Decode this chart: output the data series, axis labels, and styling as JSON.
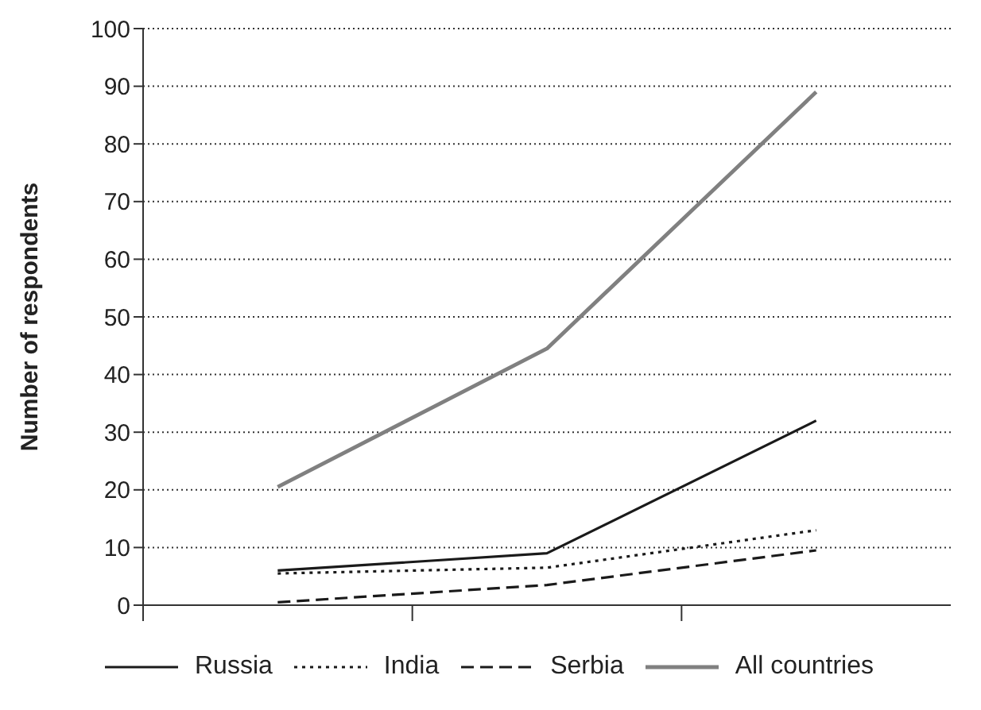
{
  "chart_data": {
    "type": "line",
    "ylabel": "Number of respondents",
    "categories": [
      null,
      null,
      null
    ],
    "series": [
      {
        "name": "Russia",
        "color": "#1a1a1a",
        "line_style": "solid",
        "values": [
          6,
          9,
          32
        ]
      },
      {
        "name": "India",
        "color": "#1a1a1a",
        "line_style": "dotted",
        "values": [
          5.5,
          6.5,
          13
        ]
      },
      {
        "name": "Serbia",
        "color": "#1a1a1a",
        "line_style": "dashed",
        "values": [
          0.5,
          3.5,
          9.5
        ]
      },
      {
        "name": "All countries",
        "color": "#808080",
        "line_style": "solid",
        "values": [
          20.5,
          44.5,
          89
        ]
      }
    ],
    "ylim": [
      0,
      100
    ],
    "yticks": [
      0,
      10,
      20,
      30,
      40,
      50,
      60,
      70,
      80,
      90,
      100
    ],
    "grid": "y",
    "legend": "bottom",
    "marker": "none"
  }
}
